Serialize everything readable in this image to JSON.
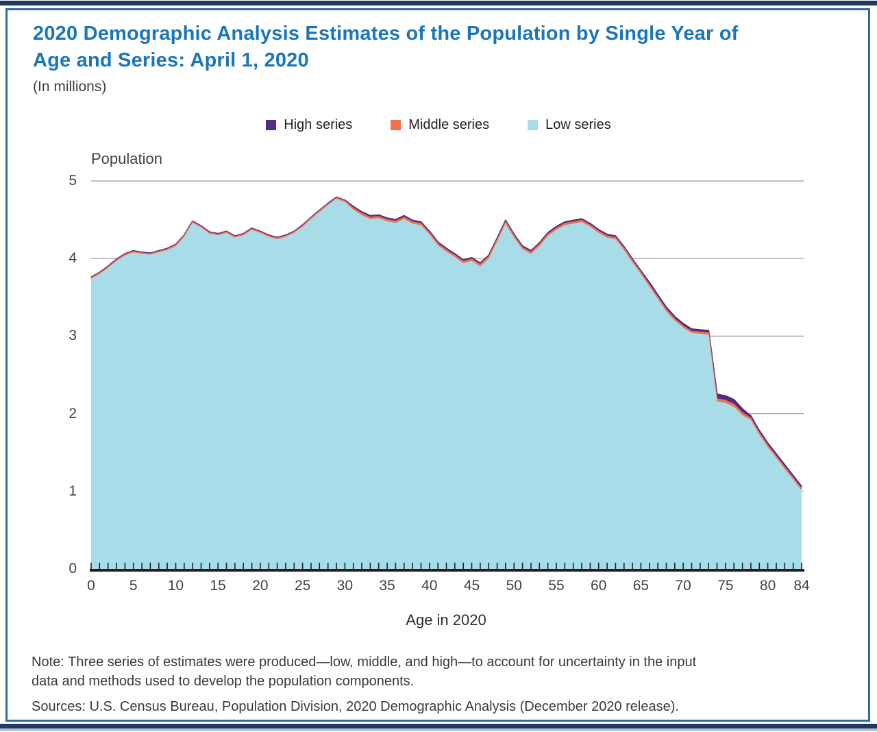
{
  "page": {
    "colors": {
      "accent_bar": "#1F3864",
      "frame_border": "#35699E",
      "title": "#1A75BB",
      "body_text": "#3A3A3A",
      "grid": "#9B9B9B",
      "axis": "#231F20",
      "background": "#FFFFFF"
    }
  },
  "header": {
    "title_line1": "2020 Demographic Analysis Estimates of the Population by Single Year of",
    "title_line2": "Age and Series: April 1, 2020",
    "units": "(In millions)"
  },
  "legend": {
    "items": [
      {
        "label": "High series",
        "color": "#532A85"
      },
      {
        "label": "Middle series",
        "color": "#F0714B"
      },
      {
        "label": "Low series",
        "color": "#A8DCE9"
      }
    ]
  },
  "chart_data": {
    "type": "area",
    "title": "2020 Demographic Analysis Estimates of the Population by Single Year of Age and Series: April 1, 2020",
    "units": "millions",
    "xlabel": "Age in 2020",
    "ylabel": "Population",
    "xlim": [
      0,
      84
    ],
    "ylim": [
      0,
      5
    ],
    "yticks": [
      0,
      1,
      2,
      3,
      4,
      5
    ],
    "xticks": [
      0,
      5,
      10,
      15,
      20,
      25,
      30,
      35,
      40,
      45,
      50,
      55,
      60,
      65,
      70,
      75,
      80,
      84
    ],
    "grid": true,
    "legend_position": "top",
    "x": [
      0,
      1,
      2,
      3,
      4,
      5,
      6,
      7,
      8,
      9,
      10,
      11,
      12,
      13,
      14,
      15,
      16,
      17,
      18,
      19,
      20,
      21,
      22,
      23,
      24,
      25,
      26,
      27,
      28,
      29,
      30,
      31,
      32,
      33,
      34,
      35,
      36,
      37,
      38,
      39,
      40,
      41,
      42,
      43,
      44,
      45,
      46,
      47,
      48,
      49,
      50,
      51,
      52,
      53,
      54,
      55,
      56,
      57,
      58,
      59,
      60,
      61,
      62,
      63,
      64,
      65,
      66,
      67,
      68,
      69,
      70,
      71,
      72,
      73,
      74,
      75,
      76,
      77,
      78,
      79,
      80,
      81,
      82,
      83,
      84
    ],
    "series": [
      {
        "name": "High series",
        "color": "#532A85",
        "values": [
          3.76,
          3.82,
          3.9,
          3.99,
          4.06,
          4.1,
          4.08,
          4.07,
          4.1,
          4.13,
          4.18,
          4.3,
          4.48,
          4.42,
          4.34,
          4.32,
          4.35,
          4.29,
          4.32,
          4.39,
          4.35,
          4.3,
          4.27,
          4.3,
          4.35,
          4.43,
          4.53,
          4.62,
          4.71,
          4.79,
          4.75,
          4.67,
          4.6,
          4.55,
          4.56,
          4.52,
          4.5,
          4.55,
          4.49,
          4.47,
          4.35,
          4.21,
          4.13,
          4.06,
          3.98,
          4.01,
          3.94,
          4.04,
          4.26,
          4.49,
          4.31,
          4.16,
          4.1,
          4.2,
          4.33,
          4.41,
          4.47,
          4.49,
          4.51,
          4.45,
          4.37,
          4.31,
          4.29,
          4.15,
          3.99,
          3.84,
          3.69,
          3.53,
          3.37,
          3.25,
          3.16,
          3.09,
          3.08,
          3.07,
          2.25,
          2.23,
          2.18,
          2.06,
          1.97,
          1.78,
          1.62,
          1.48,
          1.34,
          1.2,
          1.06
        ]
      },
      {
        "name": "Middle series",
        "color": "#F0714B",
        "values": [
          3.75,
          3.81,
          3.89,
          3.98,
          4.05,
          4.09,
          4.07,
          4.06,
          4.09,
          4.12,
          4.17,
          4.29,
          4.47,
          4.41,
          4.33,
          4.31,
          4.34,
          4.28,
          4.31,
          4.38,
          4.34,
          4.29,
          4.26,
          4.29,
          4.34,
          4.42,
          4.52,
          4.61,
          4.7,
          4.78,
          4.74,
          4.65,
          4.58,
          4.53,
          4.54,
          4.5,
          4.48,
          4.53,
          4.47,
          4.45,
          4.33,
          4.19,
          4.11,
          4.04,
          3.96,
          3.99,
          3.92,
          4.02,
          4.24,
          4.47,
          4.29,
          4.14,
          4.08,
          4.18,
          4.31,
          4.39,
          4.45,
          4.47,
          4.49,
          4.43,
          4.35,
          4.29,
          4.27,
          4.13,
          3.97,
          3.82,
          3.66,
          3.5,
          3.34,
          3.22,
          3.13,
          3.06,
          3.05,
          3.04,
          2.19,
          2.17,
          2.12,
          2.01,
          1.94,
          1.75,
          1.59,
          1.45,
          1.31,
          1.17,
          1.03
        ]
      },
      {
        "name": "Low series",
        "color": "#A8DCE9",
        "values": [
          3.74,
          3.8,
          3.88,
          3.97,
          4.04,
          4.08,
          4.06,
          4.05,
          4.08,
          4.11,
          4.16,
          4.28,
          4.46,
          4.4,
          4.32,
          4.3,
          4.33,
          4.27,
          4.3,
          4.37,
          4.33,
          4.28,
          4.25,
          4.28,
          4.33,
          4.41,
          4.51,
          4.6,
          4.69,
          4.77,
          4.73,
          4.63,
          4.56,
          4.51,
          4.52,
          4.48,
          4.46,
          4.51,
          4.45,
          4.43,
          4.31,
          4.17,
          4.09,
          4.02,
          3.94,
          3.97,
          3.9,
          4.0,
          4.22,
          4.45,
          4.27,
          4.12,
          4.06,
          4.16,
          4.29,
          4.37,
          4.43,
          4.45,
          4.47,
          4.41,
          4.33,
          4.27,
          4.25,
          4.11,
          3.95,
          3.8,
          3.64,
          3.48,
          3.32,
          3.2,
          3.11,
          3.04,
          3.03,
          3.02,
          2.16,
          2.14,
          2.09,
          1.98,
          1.92,
          1.73,
          1.57,
          1.43,
          1.29,
          1.15,
          1.01
        ]
      }
    ]
  },
  "notes": {
    "note_line1": "Note: Three series of estimates were produced—low, middle, and high—to account for uncertainty in the input",
    "note_line2": "data and methods used to develop the population components.",
    "sources": "Sources: U.S. Census Bureau, Population Division, 2020 Demographic Analysis (December 2020 release)."
  }
}
